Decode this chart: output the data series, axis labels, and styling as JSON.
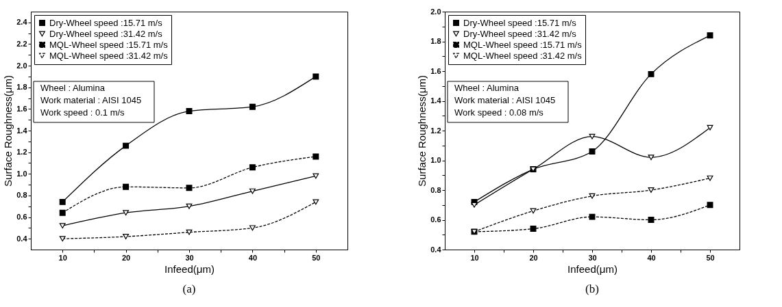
{
  "chart_data": [
    {
      "type": "line",
      "title": "(a)",
      "xlabel": "Infeed(μm)",
      "ylabel": "Surface Roughness(μm)",
      "x": [
        10,
        20,
        30,
        40,
        50
      ],
      "xlim": [
        5,
        55
      ],
      "xticks": [
        10,
        {
          "value": 15,
          "label": null
        },
        20,
        {
          "value": 25,
          "label": null
        },
        30,
        {
          "value": 35,
          "label": null
        },
        40,
        {
          "value": 45,
          "label": null
        },
        50
      ],
      "ylim": [
        0.3,
        2.5
      ],
      "yticks": [
        0.4,
        {
          "value": 0.5,
          "label": null
        },
        0.6,
        {
          "value": 0.7,
          "label": null
        },
        0.8,
        {
          "value": 0.9,
          "label": null
        },
        {
          "value": 1.0,
          "label": "1.0"
        },
        {
          "value": 1.1,
          "label": null
        },
        1.2,
        {
          "value": 1.3,
          "label": null
        },
        1.4,
        {
          "value": 1.5,
          "label": null
        },
        1.6,
        {
          "value": 1.7,
          "label": null
        },
        1.8,
        {
          "value": 1.9,
          "label": null
        },
        {
          "value": 2.0,
          "label": "2.0"
        },
        {
          "value": 2.1,
          "label": null
        },
        2.2,
        {
          "value": 2.3,
          "label": null
        },
        2.4
      ],
      "legend": "top left",
      "series": [
        {
          "name": "Dry-Wheel speed :15.71 m/s",
          "color": "#000000",
          "marker": "square",
          "line_style": "solid",
          "values": [
            0.74,
            1.26,
            1.58,
            1.62,
            1.9
          ]
        },
        {
          "name": "Dry-Wheel speed :31.42 m/s",
          "color": "#000000",
          "marker": "triangle",
          "line_style": "solid",
          "values": [
            0.52,
            0.64,
            0.7,
            0.84,
            0.98
          ]
        },
        {
          "name": "MQL-Wheel speed :15.71 m/s",
          "color": "#000000",
          "marker": "square",
          "line_style": "dashed",
          "values": [
            0.64,
            0.88,
            0.87,
            1.06,
            1.16
          ]
        },
        {
          "name": "MQL-Wheel speed :31.42 m/s",
          "color": "#000000",
          "marker": "triangle",
          "line_style": "dashed",
          "values": [
            0.4,
            0.42,
            0.46,
            0.5,
            0.74
          ]
        }
      ],
      "annotations": [
        "Wheel : Alumina",
        "Work material : AISI 1045",
        "Work speed : 0.1 m/s"
      ]
    },
    {
      "type": "line",
      "title": "(b)",
      "xlabel": "Infeed(μm)",
      "ylabel": "Surface Roughness(μm)",
      "x": [
        10,
        20,
        30,
        40,
        50
      ],
      "xlim": [
        5,
        55
      ],
      "xticks": [
        10,
        {
          "value": 15,
          "label": null
        },
        20,
        {
          "value": 25,
          "label": null
        },
        30,
        {
          "value": 35,
          "label": null
        },
        40,
        {
          "value": 45,
          "label": null
        },
        50
      ],
      "ylim": [
        0.4,
        2.0
      ],
      "yticks": [
        0.4,
        {
          "value": 0.5,
          "label": null
        },
        0.6,
        {
          "value": 0.7,
          "label": null
        },
        0.8,
        {
          "value": 0.9,
          "label": null
        },
        {
          "value": 1.0,
          "label": "1.0"
        },
        {
          "value": 1.1,
          "label": null
        },
        1.2,
        {
          "value": 1.3,
          "label": null
        },
        1.4,
        {
          "value": 1.5,
          "label": null
        },
        1.6,
        {
          "value": 1.7,
          "label": null
        },
        1.8,
        {
          "value": 1.9,
          "label": null
        },
        {
          "value": 2.0,
          "label": "2.0"
        }
      ],
      "legend": "top left",
      "series": [
        {
          "name": "Dry-Wheel speed :15.71 m/s",
          "color": "#000000",
          "marker": "square",
          "line_style": "solid",
          "values": [
            0.72,
            0.94,
            1.06,
            1.58,
            1.84
          ]
        },
        {
          "name": "Dry-Wheel speed :31.42 m/s",
          "color": "#000000",
          "marker": "triangle",
          "line_style": "solid",
          "values": [
            0.7,
            0.94,
            1.16,
            1.02,
            1.22
          ]
        },
        {
          "name": "MQL-Wheel speed :15.71 m/s",
          "color": "#000000",
          "marker": "square",
          "line_style": "dashed",
          "values": [
            0.52,
            0.54,
            0.62,
            0.6,
            0.7
          ]
        },
        {
          "name": "MQL-Wheel speed :31.42 m/s",
          "color": "#000000",
          "marker": "triangle",
          "line_style": "dashed",
          "values": [
            0.52,
            0.66,
            0.76,
            0.8,
            0.88
          ]
        }
      ],
      "annotations": [
        "Wheel : Alumina",
        "Work material : AISI 1045",
        "Work speed : 0.08 m/s"
      ]
    }
  ]
}
